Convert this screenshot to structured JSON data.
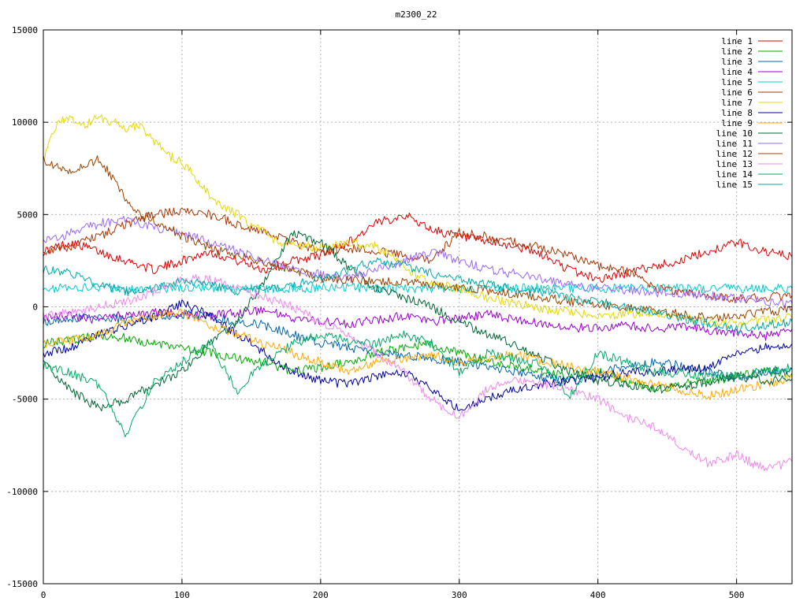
{
  "chart_data": {
    "type": "line",
    "title": "m2300_22",
    "xlabel": "",
    "ylabel": "",
    "xlim": [
      0,
      540
    ],
    "ylim": [
      -15000,
      15000
    ],
    "x_ticks": [
      0,
      100,
      200,
      300,
      400,
      500
    ],
    "y_ticks": [
      -15000,
      -10000,
      -5000,
      0,
      5000,
      10000,
      15000
    ],
    "grid": true,
    "legend_position": "top-right",
    "series": [
      {
        "name": "line 1",
        "color": "#dd0000",
        "x": [
          0,
          20,
          40,
          60,
          80,
          100,
          120,
          140,
          160,
          180,
          200,
          220,
          240,
          260,
          280,
          300,
          320,
          340,
          360,
          380,
          400,
          420,
          440,
          460,
          480,
          500,
          520,
          540
        ],
        "y": [
          3000,
          3500,
          3000,
          2500,
          2000,
          2500,
          3000,
          2500,
          2000,
          2500,
          2800,
          3500,
          4500,
          5000,
          4200,
          3800,
          3500,
          3300,
          2800,
          2000,
          1500,
          1800,
          2200,
          2500,
          3000,
          3500,
          3000,
          2700
        ]
      },
      {
        "name": "line 2",
        "color": "#00aa00",
        "x": [
          0,
          20,
          40,
          60,
          80,
          100,
          120,
          140,
          160,
          180,
          200,
          220,
          240,
          260,
          280,
          300,
          320,
          340,
          360,
          380,
          400,
          420,
          440,
          460,
          480,
          500,
          520,
          540
        ],
        "y": [
          -2000,
          -1800,
          -1500,
          -1700,
          -2000,
          -2200,
          -2500,
          -2800,
          -3000,
          -3500,
          -3300,
          -3000,
          -2500,
          -2200,
          -2000,
          -2500,
          -3000,
          -3200,
          -3500,
          -3800,
          -3500,
          -4000,
          -4500,
          -4200,
          -4000,
          -3800,
          -3500,
          -3600
        ]
      },
      {
        "name": "line 3",
        "color": "#0066aa",
        "x": [
          0,
          20,
          40,
          60,
          80,
          100,
          120,
          140,
          160,
          180,
          200,
          220,
          240,
          260,
          280,
          300,
          320,
          340,
          360,
          380,
          400,
          420,
          440,
          460,
          480,
          500,
          520,
          540
        ],
        "y": [
          -800,
          -600,
          -500,
          -700,
          -600,
          -400,
          -500,
          -800,
          -1000,
          -1500,
          -2000,
          -2200,
          -2500,
          -2600,
          -2800,
          -3000,
          -3200,
          -3500,
          -3800,
          -4000,
          -3600,
          -3200,
          -3000,
          -3200,
          -3500,
          -3800,
          -3600,
          -3400
        ]
      },
      {
        "name": "line 4",
        "color": "#9900cc",
        "x": [
          0,
          20,
          40,
          60,
          80,
          100,
          120,
          140,
          160,
          180,
          200,
          220,
          240,
          260,
          280,
          300,
          320,
          340,
          360,
          380,
          400,
          420,
          440,
          460,
          480,
          500,
          520,
          540
        ],
        "y": [
          -600,
          -500,
          -700,
          -400,
          -300,
          -400,
          -500,
          -300,
          -200,
          -600,
          -800,
          -900,
          -700,
          -500,
          -800,
          -600,
          -400,
          -700,
          -900,
          -1100,
          -1200,
          -1000,
          -1200,
          -1100,
          -1300,
          -1400,
          -1600,
          -1200
        ]
      },
      {
        "name": "line 5",
        "color": "#00cccc",
        "x": [
          0,
          20,
          40,
          60,
          80,
          100,
          120,
          140,
          160,
          180,
          200,
          220,
          240,
          260,
          280,
          300,
          320,
          340,
          360,
          380,
          400,
          420,
          440,
          460,
          480,
          500,
          520,
          540
        ],
        "y": [
          1000,
          1000,
          1050,
          950,
          1000,
          1000,
          1050,
          1000,
          950,
          1000,
          1000,
          1050,
          1000,
          1000,
          1000,
          950,
          1000,
          1000,
          1050,
          1000,
          1000,
          1000,
          1050,
          1000,
          1000,
          1000,
          1000,
          1000
        ]
      },
      {
        "name": "line 6",
        "color": "#aa3300",
        "x": [
          0,
          20,
          40,
          60,
          80,
          100,
          120,
          140,
          160,
          180,
          200,
          220,
          240,
          260,
          280,
          300,
          320,
          340,
          360,
          380,
          400,
          420,
          440,
          460,
          480,
          500,
          520,
          540
        ],
        "y": [
          3000,
          3300,
          3800,
          4500,
          5000,
          5200,
          5000,
          4500,
          4000,
          3500,
          3000,
          3200,
          3000,
          2800,
          2500,
          4000,
          3800,
          3500,
          3200,
          2800,
          2200,
          2000,
          1000,
          800,
          600,
          400,
          500,
          600
        ]
      },
      {
        "name": "line 7",
        "color": "#e6d800",
        "x": [
          0,
          10,
          20,
          30,
          40,
          50,
          60,
          70,
          80,
          90,
          100,
          110,
          120,
          130,
          140,
          150,
          160,
          170,
          180,
          190,
          200,
          220,
          240,
          260,
          280,
          300,
          320,
          340,
          360,
          380,
          400,
          420,
          440,
          460,
          480,
          500,
          520,
          540
        ],
        "y": [
          8000,
          10000,
          10200,
          9800,
          10300,
          10000,
          9700,
          9800,
          9000,
          8200,
          7800,
          7000,
          6000,
          5300,
          5000,
          4500,
          4000,
          3500,
          3400,
          3300,
          3200,
          3500,
          3300,
          2200,
          1200,
          1000,
          500,
          200,
          -100,
          -300,
          -500,
          -400,
          -300,
          -600,
          -800,
          -900,
          -700,
          -600
        ]
      },
      {
        "name": "line 8",
        "color": "#000099",
        "x": [
          0,
          20,
          40,
          60,
          80,
          100,
          120,
          140,
          160,
          180,
          200,
          220,
          240,
          260,
          280,
          300,
          320,
          340,
          360,
          380,
          400,
          420,
          440,
          460,
          480,
          500,
          520,
          540
        ],
        "y": [
          -2500,
          -2200,
          -1500,
          -1000,
          -500,
          200,
          -500,
          -1500,
          -2500,
          -3500,
          -4000,
          -4200,
          -3800,
          -3500,
          -4500,
          -5500,
          -5000,
          -4500,
          -4200,
          -4000,
          -3800,
          -3600,
          -3500,
          -3400,
          -3300,
          -2500,
          -2200,
          -2000
        ]
      },
      {
        "name": "line 9",
        "color": "#ffaa00",
        "x": [
          0,
          20,
          40,
          60,
          80,
          100,
          120,
          140,
          160,
          180,
          200,
          220,
          240,
          260,
          280,
          300,
          320,
          340,
          360,
          380,
          400,
          420,
          440,
          460,
          480,
          500,
          520,
          540
        ],
        "y": [
          -2000,
          -1800,
          -1500,
          -800,
          -500,
          -300,
          -1000,
          -1500,
          -2000,
          -2500,
          -3000,
          -3500,
          -3000,
          -2800,
          -2600,
          -3000,
          -2800,
          -2600,
          -2900,
          -3200,
          -3500,
          -3800,
          -4200,
          -4500,
          -4800,
          -4500,
          -4200,
          -3800
        ]
      },
      {
        "name": "line 10",
        "color": "#006633",
        "x": [
          0,
          20,
          40,
          60,
          80,
          100,
          120,
          140,
          160,
          180,
          200,
          220,
          240,
          260,
          280,
          300,
          320,
          340,
          360,
          380,
          400,
          420,
          440,
          460,
          480,
          500,
          520,
          540
        ],
        "y": [
          -3000,
          -4500,
          -5500,
          -5000,
          -4200,
          -3500,
          -2000,
          -800,
          1500,
          4000,
          3500,
          2200,
          1000,
          500,
          0,
          -800,
          -1500,
          -2000,
          -2800,
          -3500,
          -4000,
          -4200,
          -4500,
          -4300,
          -4100,
          -3800,
          -4000,
          -3900
        ]
      },
      {
        "name": "line 11",
        "color": "#9966ff",
        "x": [
          0,
          20,
          40,
          60,
          80,
          100,
          120,
          140,
          160,
          180,
          200,
          220,
          240,
          260,
          280,
          300,
          320,
          340,
          360,
          380,
          400,
          420,
          440,
          460,
          480,
          500,
          520,
          540
        ],
        "y": [
          3500,
          4000,
          4500,
          4800,
          4300,
          4000,
          3500,
          3000,
          2500,
          2000,
          1800,
          1500,
          2000,
          2500,
          3000,
          2500,
          2000,
          1800,
          1500,
          1200,
          1000,
          900,
          800,
          700,
          600,
          500,
          300,
          200
        ]
      },
      {
        "name": "line 12",
        "color": "#994400",
        "x": [
          0,
          10,
          20,
          30,
          40,
          50,
          60,
          70,
          80,
          90,
          100,
          110,
          120,
          130,
          140,
          150,
          160,
          170,
          180,
          190,
          200,
          220,
          240,
          260,
          280,
          300,
          320,
          340,
          360,
          380,
          400,
          420,
          440,
          460,
          480,
          500,
          520,
          540
        ],
        "y": [
          8000,
          7600,
          7200,
          7600,
          8000,
          7000,
          5800,
          5000,
          4700,
          4300,
          3800,
          3500,
          3200,
          3000,
          2800,
          2600,
          2400,
          2200,
          2000,
          1800,
          1500,
          1500,
          1400,
          1300,
          1200,
          1000,
          900,
          700,
          500,
          300,
          100,
          0,
          -200,
          -400,
          -600,
          -500,
          -300,
          -100
        ]
      },
      {
        "name": "line 13",
        "color": "#ee88ee",
        "x": [
          0,
          20,
          40,
          60,
          80,
          100,
          120,
          140,
          160,
          180,
          200,
          220,
          240,
          260,
          280,
          300,
          320,
          340,
          360,
          380,
          400,
          420,
          440,
          460,
          480,
          500,
          520,
          540
        ],
        "y": [
          -500,
          -300,
          0,
          300,
          800,
          1500,
          1500,
          1000,
          500,
          0,
          -800,
          -1500,
          -2500,
          -3500,
          -5000,
          -6000,
          -4500,
          -4000,
          -4200,
          -4500,
          -5000,
          -6000,
          -6500,
          -7500,
          -8500,
          -8000,
          -8800,
          -8400
        ]
      },
      {
        "name": "line 14",
        "color": "#00aa66",
        "x": [
          0,
          20,
          40,
          60,
          80,
          100,
          120,
          140,
          160,
          180,
          200,
          220,
          240,
          260,
          280,
          300,
          320,
          340,
          360,
          380,
          400,
          420,
          440,
          460,
          480,
          500,
          520,
          540
        ],
        "y": [
          -3200,
          -3600,
          -4200,
          -7000,
          -4000,
          -3000,
          -2000,
          -4500,
          -3000,
          -2000,
          -1500,
          -1800,
          -2000,
          -1500,
          -2000,
          -3500,
          -2500,
          -2800,
          -3200,
          -4800,
          -2500,
          -3000,
          -3500,
          -3600,
          -3800,
          -3700,
          -3500,
          -3300
        ]
      },
      {
        "name": "line 15",
        "color": "#00aaaa",
        "x": [
          0,
          20,
          40,
          60,
          80,
          100,
          120,
          140,
          160,
          180,
          200,
          220,
          240,
          260,
          280,
          300,
          320,
          340,
          360,
          380,
          400,
          420,
          440,
          460,
          480,
          500,
          520,
          540
        ],
        "y": [
          2000,
          1800,
          1200,
          800,
          1000,
          1500,
          1200,
          800,
          1000,
          1200,
          1500,
          2000,
          2500,
          2200,
          1800,
          1500,
          1200,
          1000,
          800,
          500,
          300,
          0,
          -300,
          -600,
          -900,
          -1200,
          -1000,
          -800
        ]
      }
    ]
  }
}
